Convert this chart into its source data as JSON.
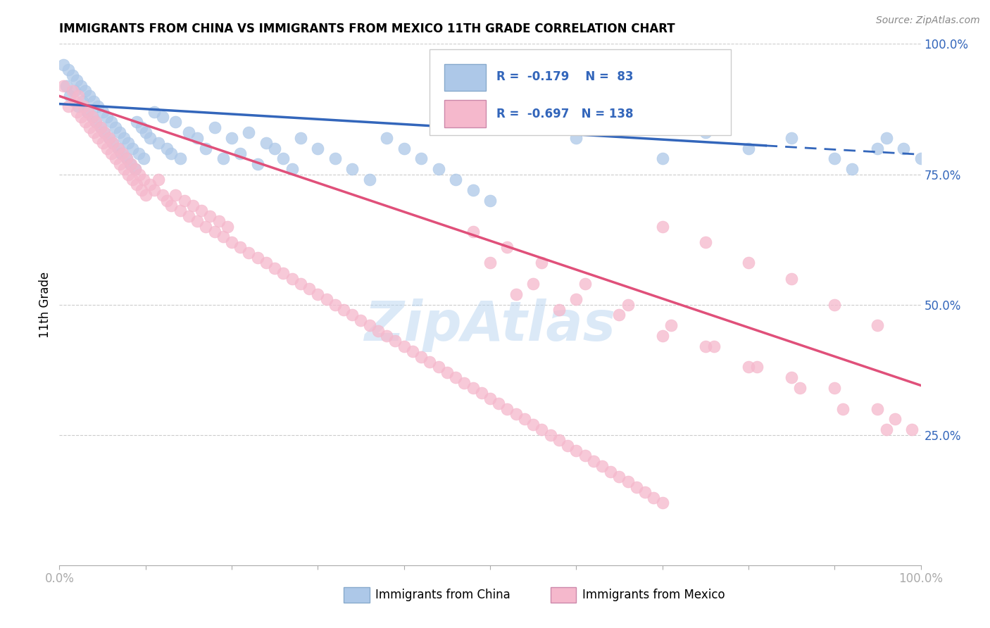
{
  "title": "IMMIGRANTS FROM CHINA VS IMMIGRANTS FROM MEXICO 11TH GRADE CORRELATION CHART",
  "source": "Source: ZipAtlas.com",
  "ylabel": "11th Grade",
  "right_yticks": [
    "100.0%",
    "75.0%",
    "50.0%",
    "25.0%"
  ],
  "right_ytick_vals": [
    1.0,
    0.75,
    0.5,
    0.25
  ],
  "legend_china": "Immigrants from China",
  "legend_mexico": "Immigrants from Mexico",
  "R_china": -0.179,
  "N_china": 83,
  "R_mexico": -0.697,
  "N_mexico": 138,
  "china_color": "#adc8e8",
  "china_line_color": "#3366bb",
  "mexico_color": "#f5b8cc",
  "mexico_line_color": "#e0507a",
  "watermark": "ZipAtlas",
  "watermark_color": "#b8d4f0",
  "background_color": "#ffffff",
  "xlim": [
    0.0,
    1.0
  ],
  "ylim": [
    0.0,
    1.0
  ],
  "china_line_x0": 0.0,
  "china_line_y0": 0.885,
  "china_line_x1": 0.82,
  "china_line_y1": 0.805,
  "china_line_dash_x0": 0.82,
  "china_line_dash_x1": 1.0,
  "china_line_dash_y0": 0.805,
  "china_line_dash_y1": 0.788,
  "mexico_line_x0": 0.0,
  "mexico_line_y0": 0.9,
  "mexico_line_x1": 1.0,
  "mexico_line_y1": 0.345,
  "china_scatter_x": [
    0.005,
    0.008,
    0.01,
    0.012,
    0.015,
    0.018,
    0.02,
    0.022,
    0.025,
    0.027,
    0.03,
    0.032,
    0.035,
    0.038,
    0.04,
    0.042,
    0.045,
    0.048,
    0.05,
    0.052,
    0.055,
    0.058,
    0.06,
    0.062,
    0.065,
    0.068,
    0.07,
    0.072,
    0.075,
    0.078,
    0.08,
    0.082,
    0.085,
    0.088,
    0.09,
    0.092,
    0.095,
    0.098,
    0.1,
    0.105,
    0.11,
    0.115,
    0.12,
    0.125,
    0.13,
    0.135,
    0.14,
    0.15,
    0.16,
    0.17,
    0.18,
    0.19,
    0.2,
    0.21,
    0.22,
    0.23,
    0.24,
    0.25,
    0.26,
    0.27,
    0.28,
    0.3,
    0.32,
    0.34,
    0.36,
    0.38,
    0.4,
    0.42,
    0.44,
    0.46,
    0.48,
    0.5,
    0.6,
    0.7,
    0.8,
    0.85,
    0.9,
    0.92,
    0.95,
    0.96,
    0.98,
    1.0,
    0.75
  ],
  "china_scatter_y": [
    0.96,
    0.92,
    0.95,
    0.9,
    0.94,
    0.91,
    0.93,
    0.88,
    0.92,
    0.89,
    0.91,
    0.87,
    0.9,
    0.86,
    0.89,
    0.85,
    0.88,
    0.84,
    0.87,
    0.83,
    0.86,
    0.82,
    0.85,
    0.81,
    0.84,
    0.8,
    0.83,
    0.79,
    0.82,
    0.78,
    0.81,
    0.77,
    0.8,
    0.76,
    0.85,
    0.79,
    0.84,
    0.78,
    0.83,
    0.82,
    0.87,
    0.81,
    0.86,
    0.8,
    0.79,
    0.85,
    0.78,
    0.83,
    0.82,
    0.8,
    0.84,
    0.78,
    0.82,
    0.79,
    0.83,
    0.77,
    0.81,
    0.8,
    0.78,
    0.76,
    0.82,
    0.8,
    0.78,
    0.76,
    0.74,
    0.82,
    0.8,
    0.78,
    0.76,
    0.74,
    0.72,
    0.7,
    0.82,
    0.78,
    0.8,
    0.82,
    0.78,
    0.76,
    0.8,
    0.82,
    0.8,
    0.78,
    0.83
  ],
  "mexico_scatter_x": [
    0.005,
    0.01,
    0.015,
    0.018,
    0.02,
    0.022,
    0.025,
    0.028,
    0.03,
    0.033,
    0.035,
    0.038,
    0.04,
    0.042,
    0.045,
    0.048,
    0.05,
    0.052,
    0.055,
    0.058,
    0.06,
    0.062,
    0.065,
    0.068,
    0.07,
    0.073,
    0.075,
    0.078,
    0.08,
    0.083,
    0.085,
    0.088,
    0.09,
    0.093,
    0.095,
    0.098,
    0.1,
    0.105,
    0.11,
    0.115,
    0.12,
    0.125,
    0.13,
    0.135,
    0.14,
    0.145,
    0.15,
    0.155,
    0.16,
    0.165,
    0.17,
    0.175,
    0.18,
    0.185,
    0.19,
    0.195,
    0.2,
    0.21,
    0.22,
    0.23,
    0.24,
    0.25,
    0.26,
    0.27,
    0.28,
    0.29,
    0.3,
    0.31,
    0.32,
    0.33,
    0.34,
    0.35,
    0.36,
    0.37,
    0.38,
    0.39,
    0.4,
    0.41,
    0.42,
    0.43,
    0.44,
    0.45,
    0.46,
    0.47,
    0.48,
    0.49,
    0.5,
    0.51,
    0.52,
    0.53,
    0.54,
    0.55,
    0.56,
    0.57,
    0.58,
    0.59,
    0.6,
    0.61,
    0.62,
    0.63,
    0.64,
    0.65,
    0.66,
    0.67,
    0.68,
    0.69,
    0.7,
    0.5,
    0.55,
    0.6,
    0.65,
    0.7,
    0.75,
    0.8,
    0.85,
    0.9,
    0.95,
    0.97,
    0.99,
    0.7,
    0.75,
    0.8,
    0.85,
    0.9,
    0.95,
    0.48,
    0.52,
    0.56,
    0.61,
    0.66,
    0.71,
    0.76,
    0.81,
    0.86,
    0.91,
    0.96,
    0.53,
    0.58
  ],
  "mexico_scatter_y": [
    0.92,
    0.88,
    0.91,
    0.89,
    0.87,
    0.9,
    0.86,
    0.88,
    0.85,
    0.87,
    0.84,
    0.86,
    0.83,
    0.85,
    0.82,
    0.84,
    0.81,
    0.83,
    0.8,
    0.82,
    0.79,
    0.81,
    0.78,
    0.8,
    0.77,
    0.79,
    0.76,
    0.78,
    0.75,
    0.77,
    0.74,
    0.76,
    0.73,
    0.75,
    0.72,
    0.74,
    0.71,
    0.73,
    0.72,
    0.74,
    0.71,
    0.7,
    0.69,
    0.71,
    0.68,
    0.7,
    0.67,
    0.69,
    0.66,
    0.68,
    0.65,
    0.67,
    0.64,
    0.66,
    0.63,
    0.65,
    0.62,
    0.61,
    0.6,
    0.59,
    0.58,
    0.57,
    0.56,
    0.55,
    0.54,
    0.53,
    0.52,
    0.51,
    0.5,
    0.49,
    0.48,
    0.47,
    0.46,
    0.45,
    0.44,
    0.43,
    0.42,
    0.41,
    0.4,
    0.39,
    0.38,
    0.37,
    0.36,
    0.35,
    0.34,
    0.33,
    0.32,
    0.31,
    0.3,
    0.29,
    0.28,
    0.27,
    0.26,
    0.25,
    0.24,
    0.23,
    0.22,
    0.21,
    0.2,
    0.19,
    0.18,
    0.17,
    0.16,
    0.15,
    0.14,
    0.13,
    0.12,
    0.58,
    0.54,
    0.51,
    0.48,
    0.44,
    0.42,
    0.38,
    0.36,
    0.34,
    0.3,
    0.28,
    0.26,
    0.65,
    0.62,
    0.58,
    0.55,
    0.5,
    0.46,
    0.64,
    0.61,
    0.58,
    0.54,
    0.5,
    0.46,
    0.42,
    0.38,
    0.34,
    0.3,
    0.26,
    0.52,
    0.49
  ]
}
